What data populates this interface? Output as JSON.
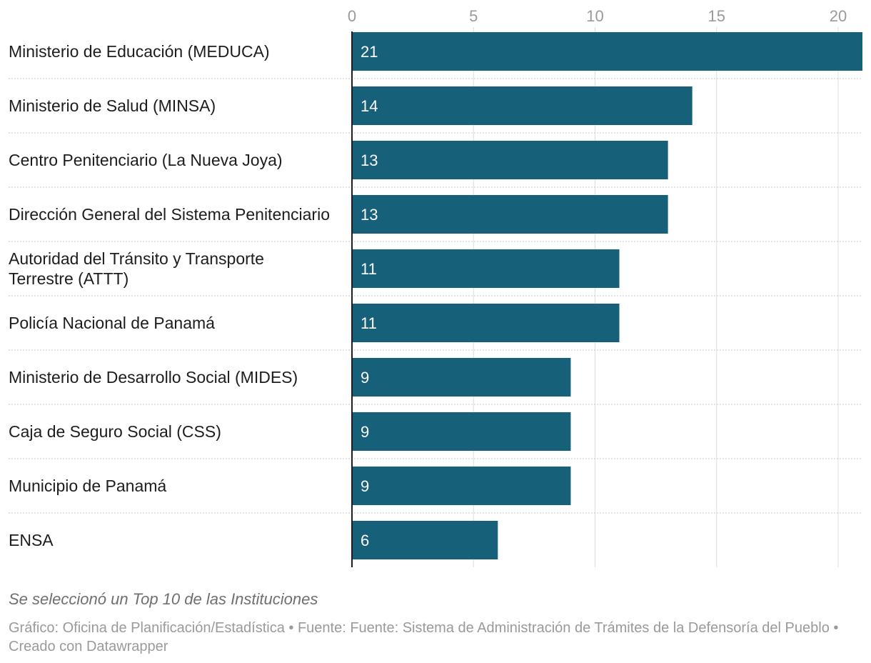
{
  "chart_data": {
    "type": "bar",
    "orientation": "horizontal",
    "categories": [
      "Ministerio de Educación (MEDUCA)",
      "Ministerio de Salud (MINSA)",
      "Centro Penitenciario (La Nueva Joya)",
      "Dirección General del Sistema Penitenciario",
      "Autoridad del Tránsito y Transporte Terrestre (ATTT)",
      "Policía Nacional de Panamá",
      "Ministerio de Desarrollo Social (MIDES)",
      "Caja de Seguro Social (CSS)",
      "Municipio de Panamá",
      "ENSA"
    ],
    "values": [
      21,
      14,
      13,
      13,
      11,
      11,
      9,
      9,
      9,
      6
    ],
    "xlim": [
      0,
      21
    ],
    "xticks": [
      0,
      5,
      10,
      15,
      20
    ],
    "grid": true,
    "bar_color": "#17607a"
  },
  "notes": "Se seleccionó un Top 10 de las Instituciones",
  "footer": "Gráfico: Oficina de Planificación/Estadística • Fuente: Fuente: Sistema de Administración de Trámites de la Defensoría del Pueblo • Creado con Datawrapper"
}
